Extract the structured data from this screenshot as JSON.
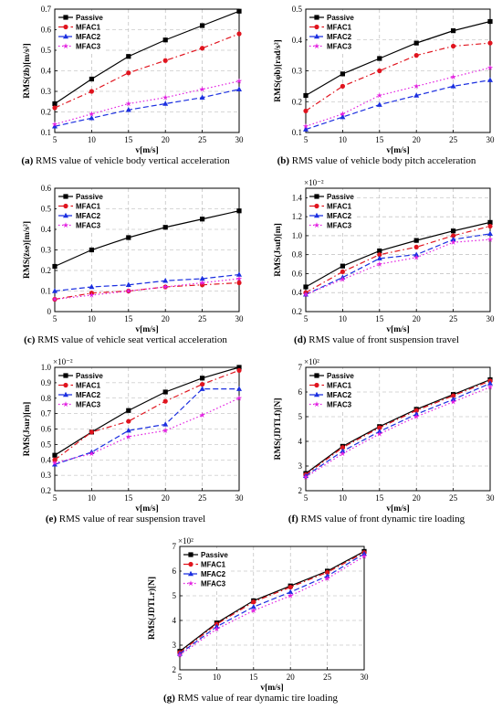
{
  "charts": [
    {
      "id": "a",
      "caption_letter": "(a)",
      "caption_text": "RMS value of vehicle body vertical acceleration",
      "type": "line",
      "xlabel": "v[m/s]",
      "ylabel": "RMS(z̈b)[m/s²]",
      "multiplier": "",
      "x": [
        5,
        10,
        15,
        20,
        25,
        30
      ],
      "xlim": [
        5,
        30
      ],
      "ylim": [
        0.1,
        0.7
      ],
      "yticks": [
        "0.1",
        "0.2",
        "0.3",
        "0.4",
        "0.5",
        "0.6",
        "0.7"
      ],
      "xticks": [
        "5",
        "10",
        "15",
        "20",
        "25",
        "30"
      ],
      "legend_position": "top-left",
      "grid": true,
      "series": [
        {
          "name": "Passive",
          "values": [
            0.24,
            0.36,
            0.47,
            0.55,
            0.62,
            0.69
          ]
        },
        {
          "name": "MFAC1",
          "values": [
            0.22,
            0.3,
            0.39,
            0.45,
            0.51,
            0.58
          ]
        },
        {
          "name": "MFAC2",
          "values": [
            0.13,
            0.17,
            0.21,
            0.24,
            0.27,
            0.31
          ]
        },
        {
          "name": "MFAC3",
          "values": [
            0.14,
            0.19,
            0.24,
            0.27,
            0.31,
            0.35
          ]
        }
      ]
    },
    {
      "id": "b",
      "caption_letter": "(b)",
      "caption_text": "RMS value of vehicle body pitch acceleration",
      "type": "line",
      "xlabel": "v[m/s]",
      "ylabel": "RMS(φ̈b)[rad/s²]",
      "multiplier": "",
      "x": [
        5,
        10,
        15,
        20,
        25,
        30
      ],
      "xlim": [
        5,
        30
      ],
      "ylim": [
        0.1,
        0.5
      ],
      "yticks": [
        "0.1",
        "0.2",
        "0.3",
        "0.4",
        "0.5"
      ],
      "xticks": [
        "5",
        "10",
        "15",
        "20",
        "25",
        "30"
      ],
      "legend_position": "top-left",
      "grid": true,
      "series": [
        {
          "name": "Passive",
          "values": [
            0.22,
            0.29,
            0.34,
            0.39,
            0.43,
            0.46
          ]
        },
        {
          "name": "MFAC1",
          "values": [
            0.17,
            0.25,
            0.3,
            0.35,
            0.38,
            0.39
          ]
        },
        {
          "name": "MFAC2",
          "values": [
            0.11,
            0.15,
            0.19,
            0.22,
            0.25,
            0.27
          ]
        },
        {
          "name": "MFAC3",
          "values": [
            0.12,
            0.16,
            0.22,
            0.25,
            0.28,
            0.31
          ]
        }
      ]
    },
    {
      "id": "c",
      "caption_letter": "(c)",
      "caption_text": "RMS value of vehicle seat vertical acceleration",
      "type": "line",
      "xlabel": "v[m/s]",
      "ylabel": "RMS(z̈se)[m/s²]",
      "multiplier": "",
      "x": [
        5,
        10,
        15,
        20,
        25,
        30
      ],
      "xlim": [
        5,
        30
      ],
      "ylim": [
        0.0,
        0.6
      ],
      "yticks": [
        "0",
        "0.1",
        "0.2",
        "0.3",
        "0.4",
        "0.5",
        "0.6"
      ],
      "xticks": [
        "5",
        "10",
        "15",
        "20",
        "25",
        "30"
      ],
      "legend_position": "top-left",
      "grid": true,
      "series": [
        {
          "name": "Passive",
          "values": [
            0.22,
            0.3,
            0.36,
            0.41,
            0.45,
            0.49
          ]
        },
        {
          "name": "MFAC1",
          "values": [
            0.06,
            0.09,
            0.1,
            0.12,
            0.13,
            0.14
          ]
        },
        {
          "name": "MFAC2",
          "values": [
            0.1,
            0.12,
            0.13,
            0.15,
            0.16,
            0.18
          ]
        },
        {
          "name": "MFAC3",
          "values": [
            0.06,
            0.08,
            0.1,
            0.12,
            0.14,
            0.16
          ]
        }
      ]
    },
    {
      "id": "d",
      "caption_letter": "(d)",
      "caption_text": "RMS value of front suspension travel",
      "type": "line",
      "xlabel": "v[m/s]",
      "ylabel": "RMS(Jsuf)[m]",
      "multiplier": "×10⁻²",
      "x": [
        5,
        10,
        15,
        20,
        25,
        30
      ],
      "xlim": [
        5,
        30
      ],
      "ylim": [
        0.2,
        1.5
      ],
      "yticks": [
        "0.2",
        "0.4",
        "0.6",
        "0.8",
        "1.0",
        "1.2",
        "1.4"
      ],
      "xticks": [
        "5",
        "10",
        "15",
        "20",
        "25",
        "30"
      ],
      "legend_position": "top-left",
      "grid": true,
      "series": [
        {
          "name": "Passive",
          "values": [
            0.46,
            0.68,
            0.84,
            0.95,
            1.05,
            1.14
          ]
        },
        {
          "name": "MFAC1",
          "values": [
            0.4,
            0.62,
            0.8,
            0.88,
            1.0,
            1.1
          ]
        },
        {
          "name": "MFAC2",
          "values": [
            0.38,
            0.56,
            0.76,
            0.8,
            0.96,
            1.02
          ]
        },
        {
          "name": "MFAC3",
          "values": [
            0.38,
            0.54,
            0.7,
            0.77,
            0.93,
            0.96
          ]
        }
      ]
    },
    {
      "id": "e",
      "caption_letter": "(e)",
      "caption_text": "RMS value of rear suspension travel",
      "type": "line",
      "xlabel": "v[m/s]",
      "ylabel": "RMS(Jsur)[m]",
      "multiplier": "×10⁻²",
      "x": [
        5,
        10,
        15,
        20,
        25,
        30
      ],
      "xlim": [
        5,
        30
      ],
      "ylim": [
        0.2,
        1.0
      ],
      "yticks": [
        "0.2",
        "0.3",
        "0.4",
        "0.5",
        "0.6",
        "0.7",
        "0.8",
        "0.9",
        "1.0"
      ],
      "xticks": [
        "5",
        "10",
        "15",
        "20",
        "25",
        "30"
      ],
      "legend_position": "top-left",
      "grid": true,
      "series": [
        {
          "name": "Passive",
          "values": [
            0.43,
            0.58,
            0.72,
            0.84,
            0.93,
            1.0
          ]
        },
        {
          "name": "MFAC1",
          "values": [
            0.4,
            0.58,
            0.65,
            0.78,
            0.89,
            0.98
          ]
        },
        {
          "name": "MFAC2",
          "values": [
            0.37,
            0.45,
            0.59,
            0.63,
            0.86,
            0.86
          ]
        },
        {
          "name": "MFAC3",
          "values": [
            0.38,
            0.44,
            0.55,
            0.59,
            0.69,
            0.8
          ]
        }
      ]
    },
    {
      "id": "f",
      "caption_letter": "(f)",
      "caption_text": "RMS value of front dynamic tire loading",
      "type": "line",
      "xlabel": "v[m/s]",
      "ylabel": "RMS(JDTLf)[N]",
      "multiplier": "×10²",
      "x": [
        5,
        10,
        15,
        20,
        25,
        30
      ],
      "xlim": [
        5,
        30
      ],
      "ylim": [
        2,
        7
      ],
      "yticks": [
        "2",
        "3",
        "4",
        "5",
        "6",
        "7"
      ],
      "xticks": [
        "5",
        "10",
        "15",
        "20",
        "25",
        "30"
      ],
      "legend_position": "top-left",
      "grid": true,
      "series": [
        {
          "name": "Passive",
          "values": [
            2.7,
            3.8,
            4.6,
            5.3,
            5.9,
            6.5
          ]
        },
        {
          "name": "MFAC1",
          "values": [
            2.65,
            3.75,
            4.55,
            5.25,
            5.85,
            6.45
          ]
        },
        {
          "name": "MFAC2",
          "values": [
            2.6,
            3.6,
            4.4,
            5.1,
            5.7,
            6.35
          ]
        },
        {
          "name": "MFAC3",
          "values": [
            2.55,
            3.5,
            4.3,
            5.0,
            5.6,
            6.2
          ]
        }
      ]
    },
    {
      "id": "g",
      "caption_letter": "(g)",
      "caption_text": "RMS value of rear dynamic tire loading",
      "type": "line",
      "xlabel": "v[m/s]",
      "ylabel": "RMS(JDTLr)[N]",
      "multiplier": "×10²",
      "x": [
        5,
        10,
        15,
        20,
        25,
        30
      ],
      "xlim": [
        5,
        30
      ],
      "ylim": [
        2,
        7
      ],
      "yticks": [
        "2",
        "3",
        "4",
        "5",
        "6",
        "7"
      ],
      "xticks": [
        "5",
        "10",
        "15",
        "20",
        "25",
        "30"
      ],
      "legend_position": "top-left",
      "grid": true,
      "series": [
        {
          "name": "Passive",
          "values": [
            2.75,
            3.9,
            4.8,
            5.4,
            6.0,
            6.8
          ]
        },
        {
          "name": "MFAC1",
          "values": [
            2.7,
            3.85,
            4.75,
            5.35,
            5.95,
            6.75
          ]
        },
        {
          "name": "MFAC2",
          "values": [
            2.65,
            3.75,
            4.55,
            5.15,
            5.8,
            6.7
          ]
        },
        {
          "name": "MFAC3",
          "values": [
            2.6,
            3.65,
            4.4,
            5.0,
            5.7,
            6.6
          ]
        }
      ]
    }
  ],
  "series_styles": {
    "Passive": {
      "color": "#000000",
      "dash": "",
      "marker": "square"
    },
    "MFAC1": {
      "color": "#e0141e",
      "dash": "6,3,1.5,3",
      "marker": "circle"
    },
    "MFAC2": {
      "color": "#1b2fe0",
      "dash": "6,3",
      "marker": "triangle"
    },
    "MFAC3": {
      "color": "#e21ee0",
      "dash": "1.5,2.5",
      "marker": "star"
    }
  }
}
